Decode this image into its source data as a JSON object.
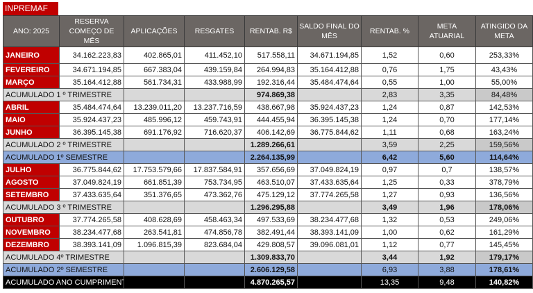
{
  "brand": "INPREMAF",
  "headers": [
    "ANO: 2025",
    "RESERVA COMEÇO DE MÊS",
    "APLICAÇÕES",
    "RESGATES",
    "RENTAB. R$",
    "SALDO FINAL DO MÊS",
    "RENTAB. %",
    "META ATUARIAL",
    "ATINGIDO DA META"
  ],
  "rows": [
    {
      "type": "month",
      "label": "JANEIRO",
      "reserva": "34.162.223,83",
      "aplicacoes": "402.865,01",
      "resgates": "411.452,10",
      "rentab": "517.558,11",
      "saldo": "34.671.194,85",
      "rentab_pct": "1,52",
      "meta": "0,60",
      "atingido": "253,33%"
    },
    {
      "type": "month",
      "label": "FEVEREIRO",
      "reserva": "34.671.194,85",
      "aplicacoes": "667.383,04",
      "resgates": "439.159,84",
      "rentab": "264.994,83",
      "saldo": "35.164.412,88",
      "rentab_pct": "0,76",
      "meta": "1,75",
      "atingido": "43,43%"
    },
    {
      "type": "month",
      "label": "MARÇO",
      "reserva": "35.164.412,88",
      "aplicacoes": "561.734,31",
      "resgates": "433.988,99",
      "rentab": "192.316,44",
      "saldo": "35.484.474,64",
      "rentab_pct": "0,55",
      "meta": "1,00",
      "atingido": "55,00%"
    },
    {
      "type": "tri",
      "label": "ACUMULADO 1 º TRIMESTRE",
      "rentab": "974.869,38",
      "rentab_pct": "2,83",
      "meta": "3,35",
      "atingido": "84,48%"
    },
    {
      "type": "month",
      "label": "ABRIL",
      "reserva": "35.484.474,64",
      "aplicacoes": "13.239.011,20",
      "resgates": "13.237.716,59",
      "rentab": "438.667,98",
      "saldo": "35.924.437,23",
      "rentab_pct": "1,24",
      "meta": "0,87",
      "atingido": "142,53%"
    },
    {
      "type": "month",
      "label": "MAIO",
      "reserva": "35.924.437,23",
      "aplicacoes": "485.996,12",
      "resgates": "459.743,91",
      "rentab": "444.455,94",
      "saldo": "36.395.145,38",
      "rentab_pct": "1,24",
      "meta": "0,70",
      "atingido": "177,14%"
    },
    {
      "type": "month",
      "label": "JUNHO",
      "reserva": "36.395.145,38",
      "aplicacoes": "691.176,92",
      "resgates": "716.620,37",
      "rentab": "406.142,69",
      "saldo": "36.775.844,62",
      "rentab_pct": "1,11",
      "meta": "0,68",
      "atingido": "163,24%"
    },
    {
      "type": "tri",
      "label": "ACUMULADO 2 º TRIMESTRE",
      "rentab": "1.289.266,61",
      "rentab_pct": "3,59",
      "meta": "2,25",
      "atingido": "159,56%"
    },
    {
      "type": "sem",
      "bold": true,
      "label": "ACUMULADO 1º SEMESTRE",
      "rentab": "2.264.135,99",
      "rentab_pct": "6,42",
      "meta": "5,60",
      "atingido": "114,64%"
    },
    {
      "type": "month",
      "label": "JULHO",
      "reserva": "36.775.844,62",
      "aplicacoes": "17.753.579,66",
      "resgates": "17.837.584,91",
      "rentab": "357.656,69",
      "saldo": "37.049.824,19",
      "rentab_pct": "0,97",
      "meta": "0,7",
      "atingido": "138,57%"
    },
    {
      "type": "month",
      "label": "AGOSTO",
      "reserva": "37.049.824,19",
      "aplicacoes": "661.851,39",
      "resgates": "753.734,95",
      "rentab": "463.510,07",
      "saldo": "37.433.635,64",
      "rentab_pct": "1,25",
      "meta": "0,33",
      "atingido": "378,79%"
    },
    {
      "type": "month",
      "label": "SETEMBRO",
      "reserva": "37.433.635,64",
      "aplicacoes": "351.376,65",
      "resgates": "473.362,76",
      "rentab": "475.129,12",
      "saldo": "37.774.265,58",
      "rentab_pct": "1,27",
      "meta": "0,93",
      "atingido": "136,56%"
    },
    {
      "type": "tri",
      "bold": true,
      "label": "ACUMULADO 3 º TRIMESTRE",
      "rentab": "1.296.295,88",
      "rentab_pct": "3,49",
      "meta": "1,96",
      "atingido": "178,06%"
    },
    {
      "type": "month",
      "label": "OUTUBRO",
      "reserva": "37.774.265,58",
      "aplicacoes": "408.628,69",
      "resgates": "458.463,34",
      "rentab": "497.533,69",
      "saldo": "38.234.477,68",
      "rentab_pct": "1,32",
      "meta": "0,53",
      "atingido": "249,06%"
    },
    {
      "type": "month",
      "label": "NOVEMBRO",
      "reserva": "38.234.477,68",
      "aplicacoes": "263.541,81",
      "resgates": "474.856,78",
      "rentab": "382.491,44",
      "saldo": "38.393.141,09",
      "rentab_pct": "1,00",
      "meta": "0,62",
      "atingido": "161,29%"
    },
    {
      "type": "month",
      "label": "DEZEMBRO",
      "reserva": "38.393.141,09",
      "aplicacoes": "1.096.815,39",
      "resgates": "823.684,04",
      "rentab": "429.808,57",
      "saldo": "39.096.081,01",
      "rentab_pct": "1,12",
      "meta": "0,77",
      "atingido": "145,45%"
    },
    {
      "type": "tri",
      "bold": true,
      "label": "ACUMULADO 4º TRIMESTRE",
      "rentab": "1.309.833,70",
      "rentab_pct": "3,44",
      "meta": "1,92",
      "atingido": "179,17%"
    },
    {
      "type": "sem",
      "label": "ACUMULADO 2º  SEMESTRE",
      "rentab": "2.606.129,58",
      "rentab_pct": "6,93",
      "meta": "3,88",
      "atingido": "178,61%",
      "atingido_bold": true
    },
    {
      "type": "ano",
      "label": "ACUMULADO ANO CUMPRIMENTO META ATUARIAL",
      "rentab": "4.870.265,57",
      "rentab_pct": "13,35",
      "meta": "9,48",
      "atingido": "140,82%",
      "atingido_bold": true
    }
  ]
}
